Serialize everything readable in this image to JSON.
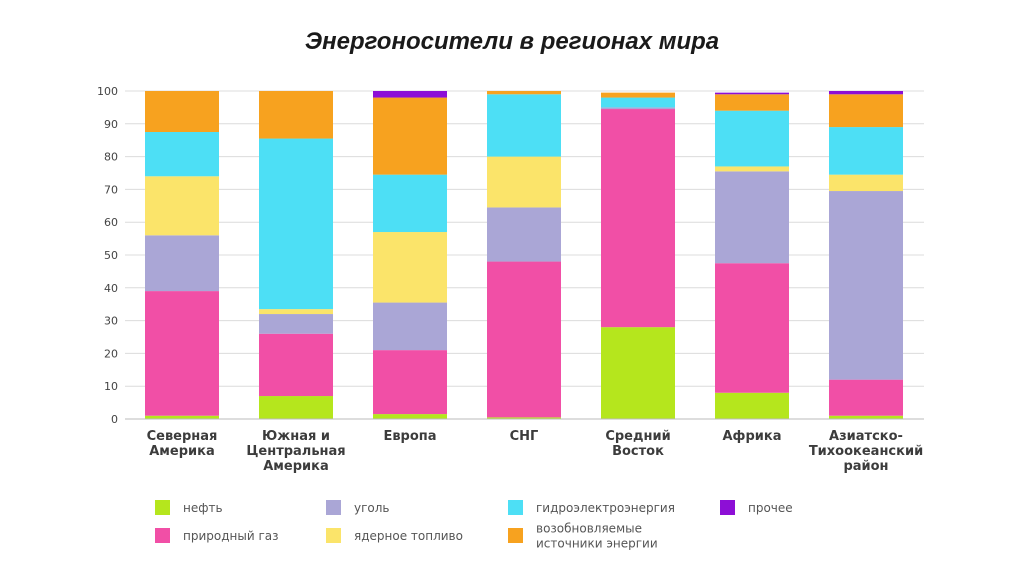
{
  "chart_data": {
    "type": "bar",
    "stacked": true,
    "title": "Энергоносители в регионах мира",
    "ylim": [
      0,
      100
    ],
    "yticks": [
      0,
      10,
      20,
      30,
      40,
      50,
      60,
      70,
      80,
      90,
      100
    ],
    "categories": [
      [
        "Северная",
        "Америка"
      ],
      [
        "Южная и",
        "Центральная",
        "Америка"
      ],
      [
        "Европа"
      ],
      [
        "СНГ"
      ],
      [
        "Средний",
        "Восток"
      ],
      [
        "Африка"
      ],
      [
        "Азиатско-",
        "Тихоокеанский",
        "район"
      ]
    ],
    "series": [
      {
        "name": "нефть",
        "label": [
          "нефть"
        ],
        "color": "#b5e61d",
        "values": [
          1,
          7,
          1.5,
          0.5,
          28,
          8,
          1
        ]
      },
      {
        "name": "природный газ",
        "label": [
          "природный газ"
        ],
        "color": "#f14fa6",
        "values": [
          38,
          19,
          19.5,
          47.5,
          66.5,
          39.5,
          11
        ]
      },
      {
        "name": "уголь",
        "label": [
          "уголь"
        ],
        "color": "#aaa6d6",
        "values": [
          17,
          6,
          14.5,
          16.5,
          0.5,
          28,
          57.5
        ]
      },
      {
        "name": "ядерное топливо",
        "label": [
          "ядерное топливо"
        ],
        "color": "#fbe46a",
        "values": [
          18,
          1.5,
          21.5,
          15.5,
          0,
          1.5,
          5
        ]
      },
      {
        "name": "гидроэлектроэнергия",
        "label": [
          "гидроэлектроэнергия"
        ],
        "color": "#4ddff5",
        "values": [
          13.5,
          52,
          17.5,
          19,
          3,
          17,
          14.5
        ]
      },
      {
        "name": "возобновляемые источники энергии",
        "label": [
          "возобновляемые",
          "источники энергии"
        ],
        "color": "#f7a21f",
        "values": [
          12.5,
          14.5,
          23.5,
          1,
          1.5,
          5,
          10
        ]
      },
      {
        "name": "прочее",
        "label": [
          "прочее"
        ],
        "color": "#8d0fd6",
        "values": [
          0,
          0,
          2,
          0,
          0,
          0.5,
          1
        ]
      }
    ]
  }
}
